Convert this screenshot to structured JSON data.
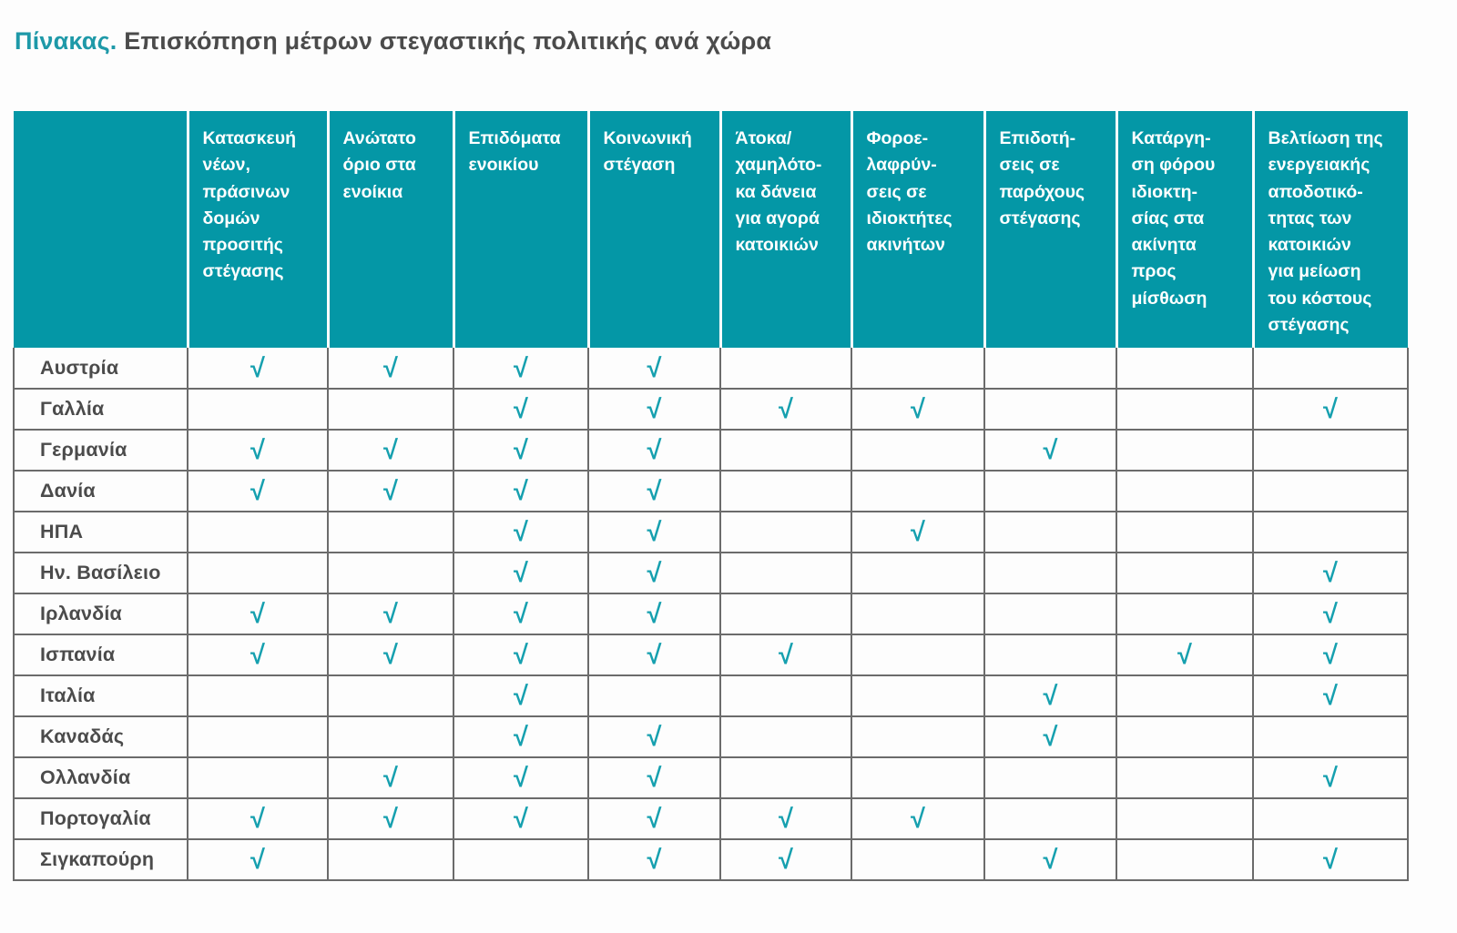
{
  "title": {
    "prefix": "Πίνακας.",
    "main": " Επισκόπηση μέτρων στεγαστικής πολιτικής ανά χώρα"
  },
  "colors": {
    "header_teal": "#0497a6",
    "check_teal": "#16a0af",
    "title_prefix_teal": "#1e99a8",
    "text_dark": "#4b4b4b",
    "grid_gray": "#6b6b6b"
  },
  "table": {
    "check_glyph": "√",
    "corner_label": "",
    "columns": [
      "Κατασκευή\nνέων,\nπράσινων\nδομών\nπροσιτής\nστέγασης",
      "Ανώτατο\nόριο στα\nενοίκια",
      "Επιδόματα\nενοικίου",
      "Κοινωνική\nστέγαση",
      "Άτοκα/\nχαμηλότο-\nκα δάνεια\nγια αγορά\nκατοικιών",
      "Φοροε-\nλαφρύν-\nσεις σε\nιδιοκτήτες\nακινήτων",
      "Επιδοτή-\nσεις σε\nπαρόχους\nστέγασης",
      "Κατάργη-\nση φόρου\nιδιοκτη-\nσίας στα\nακίνητα\nπρος\nμίσθωση",
      "Βελτίωση της\nενεργειακής\nαποδοτικό-\nτητας των\nκατοικιών\nγια μείωση\nτου κόστους\nστέγασης"
    ],
    "rows": [
      {
        "country": "Αυστρία",
        "checks": [
          1,
          1,
          1,
          1,
          0,
          0,
          0,
          0,
          0
        ]
      },
      {
        "country": "Γαλλία",
        "checks": [
          0,
          0,
          1,
          1,
          1,
          1,
          0,
          0,
          1
        ]
      },
      {
        "country": "Γερμανία",
        "checks": [
          1,
          1,
          1,
          1,
          0,
          0,
          1,
          0,
          0
        ]
      },
      {
        "country": "Δανία",
        "checks": [
          1,
          1,
          1,
          1,
          0,
          0,
          0,
          0,
          0
        ]
      },
      {
        "country": "ΗΠΑ",
        "checks": [
          0,
          0,
          1,
          1,
          0,
          1,
          0,
          0,
          0
        ]
      },
      {
        "country": "Ην. Βασίλειο",
        "checks": [
          0,
          0,
          1,
          1,
          0,
          0,
          0,
          0,
          1
        ]
      },
      {
        "country": "Ιρλανδία",
        "checks": [
          1,
          1,
          1,
          1,
          0,
          0,
          0,
          0,
          1
        ]
      },
      {
        "country": "Ισπανία",
        "checks": [
          1,
          1,
          1,
          1,
          1,
          0,
          0,
          1,
          1
        ]
      },
      {
        "country": "Ιταλία",
        "checks": [
          0,
          0,
          1,
          0,
          0,
          0,
          1,
          0,
          1
        ]
      },
      {
        "country": "Καναδάς",
        "checks": [
          0,
          0,
          1,
          1,
          0,
          0,
          1,
          0,
          0
        ]
      },
      {
        "country": "Ολλανδία",
        "checks": [
          0,
          1,
          1,
          1,
          0,
          0,
          0,
          0,
          1
        ]
      },
      {
        "country": "Πορτογαλία",
        "checks": [
          1,
          1,
          1,
          1,
          1,
          1,
          0,
          0,
          0
        ]
      },
      {
        "country": "Σιγκαπούρη",
        "checks": [
          1,
          0,
          0,
          1,
          1,
          0,
          1,
          0,
          1
        ]
      }
    ]
  }
}
